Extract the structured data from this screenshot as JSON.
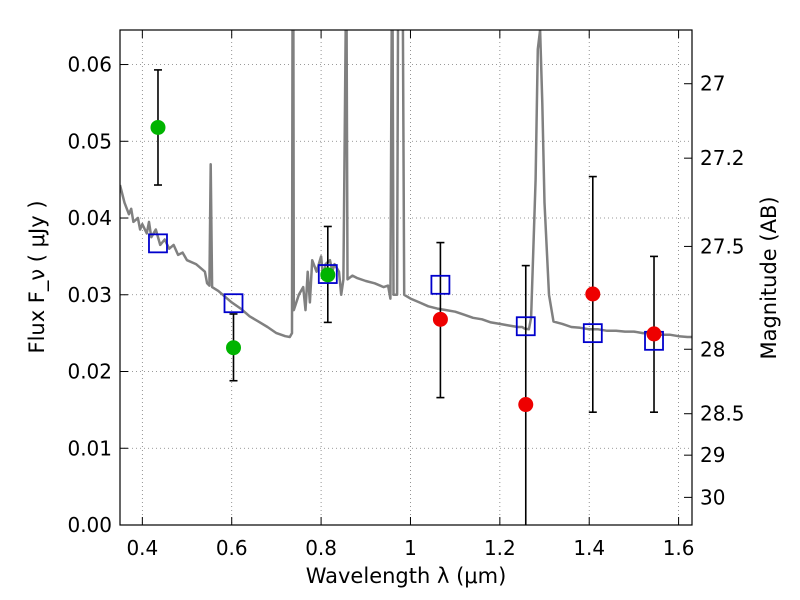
{
  "chart_data": {
    "type": "scatter",
    "title": "",
    "xlabel": "Wavelength  λ (μm)",
    "ylabel": "Flux  F_ν  ( μJy )",
    "y2label": "Magnitude (AB)",
    "xlim": [
      0.35,
      1.63
    ],
    "ylim": [
      0.0,
      0.0645
    ],
    "grid": true,
    "x_ticks": [
      0.4,
      0.6,
      0.8,
      1.0,
      1.2,
      1.4,
      1.6
    ],
    "x_tick_labels": [
      "0.4",
      "0.6",
      "0.8",
      "1",
      "1.2",
      "1.4",
      "1.6"
    ],
    "y_ticks": [
      0.0,
      0.01,
      0.02,
      0.03,
      0.04,
      0.05,
      0.06
    ],
    "y_tick_labels": [
      "0.00",
      "0.01",
      "0.02",
      "0.03",
      "0.04",
      "0.05",
      "0.06"
    ],
    "y2_ticks": [
      {
        "label": "27",
        "flux": 0.0575
      },
      {
        "label": "27.2",
        "flux": 0.0478
      },
      {
        "label": "27.5",
        "flux": 0.0363
      },
      {
        "label": "28",
        "flux": 0.0229
      },
      {
        "label": "28.5",
        "flux": 0.0145
      },
      {
        "label": "29",
        "flux": 0.0091
      },
      {
        "label": "30",
        "flux": 0.0036
      }
    ],
    "colors": {
      "model": "#808080",
      "green": "#00b400",
      "red": "#ee0000",
      "square": "#0000cc",
      "errorbar": "#000000",
      "grid": "#7a7a7a"
    },
    "model_spectrum": [
      [
        0.35,
        0.0443
      ],
      [
        0.36,
        0.042
      ],
      [
        0.37,
        0.0405
      ],
      [
        0.375,
        0.0412
      ],
      [
        0.38,
        0.0395
      ],
      [
        0.39,
        0.04
      ],
      [
        0.395,
        0.0385
      ],
      [
        0.4,
        0.0392
      ],
      [
        0.41,
        0.038
      ],
      [
        0.415,
        0.0395
      ],
      [
        0.42,
        0.0375
      ],
      [
        0.43,
        0.0385
      ],
      [
        0.44,
        0.0365
      ],
      [
        0.45,
        0.0372
      ],
      [
        0.46,
        0.036
      ],
      [
        0.47,
        0.0365
      ],
      [
        0.48,
        0.0352
      ],
      [
        0.49,
        0.0355
      ],
      [
        0.5,
        0.0345
      ],
      [
        0.52,
        0.034
      ],
      [
        0.54,
        0.033
      ],
      [
        0.545,
        0.0315
      ],
      [
        0.55,
        0.0312
      ],
      [
        0.553,
        0.047
      ],
      [
        0.556,
        0.031
      ],
      [
        0.57,
        0.0305
      ],
      [
        0.6,
        0.029
      ],
      [
        0.62,
        0.0282
      ],
      [
        0.64,
        0.0272
      ],
      [
        0.66,
        0.0265
      ],
      [
        0.68,
        0.0258
      ],
      [
        0.7,
        0.025
      ],
      [
        0.72,
        0.0246
      ],
      [
        0.73,
        0.0245
      ],
      [
        0.735,
        0.025
      ],
      [
        0.736,
        0.065
      ],
      [
        0.738,
        0.065
      ],
      [
        0.739,
        0.028
      ],
      [
        0.75,
        0.03
      ],
      [
        0.76,
        0.031
      ],
      [
        0.765,
        0.028
      ],
      [
        0.77,
        0.033
      ],
      [
        0.775,
        0.029
      ],
      [
        0.78,
        0.0345
      ],
      [
        0.79,
        0.033
      ],
      [
        0.8,
        0.035
      ],
      [
        0.805,
        0.032
      ],
      [
        0.81,
        0.034
      ],
      [
        0.82,
        0.0345
      ],
      [
        0.825,
        0.033
      ],
      [
        0.83,
        0.034
      ],
      [
        0.84,
        0.033
      ],
      [
        0.845,
        0.03
      ],
      [
        0.85,
        0.032
      ],
      [
        0.855,
        0.065
      ],
      [
        0.857,
        0.065
      ],
      [
        0.859,
        0.032
      ],
      [
        0.87,
        0.0325
      ],
      [
        0.88,
        0.0322
      ],
      [
        0.9,
        0.0318
      ],
      [
        0.92,
        0.0315
      ],
      [
        0.94,
        0.031
      ],
      [
        0.95,
        0.0312
      ],
      [
        0.955,
        0.0295
      ],
      [
        0.958,
        0.065
      ],
      [
        0.96,
        0.065
      ],
      [
        0.962,
        0.03
      ],
      [
        0.97,
        0.03
      ],
      [
        0.972,
        0.065
      ],
      [
        0.976,
        0.065
      ],
      [
        0.98,
        0.065
      ],
      [
        0.983,
        0.065
      ],
      [
        0.986,
        0.03
      ],
      [
        1.0,
        0.0295
      ],
      [
        1.02,
        0.029
      ],
      [
        1.04,
        0.0285
      ],
      [
        1.06,
        0.0282
      ],
      [
        1.08,
        0.028
      ],
      [
        1.1,
        0.0278
      ],
      [
        1.12,
        0.0274
      ],
      [
        1.14,
        0.027
      ],
      [
        1.16,
        0.0268
      ],
      [
        1.18,
        0.0264
      ],
      [
        1.2,
        0.0262
      ],
      [
        1.22,
        0.026
      ],
      [
        1.24,
        0.0258
      ],
      [
        1.25,
        0.0258
      ],
      [
        1.255,
        0.0256
      ],
      [
        1.265,
        0.0255
      ],
      [
        1.27,
        0.027
      ],
      [
        1.28,
        0.045
      ],
      [
        1.285,
        0.062
      ],
      [
        1.29,
        0.0645
      ],
      [
        1.295,
        0.055
      ],
      [
        1.3,
        0.042
      ],
      [
        1.31,
        0.03
      ],
      [
        1.32,
        0.0265
      ],
      [
        1.34,
        0.0262
      ],
      [
        1.36,
        0.0258
      ],
      [
        1.38,
        0.0257
      ],
      [
        1.4,
        0.0255
      ],
      [
        1.42,
        0.0255
      ],
      [
        1.44,
        0.0253
      ],
      [
        1.46,
        0.0253
      ],
      [
        1.48,
        0.0252
      ],
      [
        1.5,
        0.0252
      ],
      [
        1.52,
        0.025
      ],
      [
        1.54,
        0.025
      ],
      [
        1.56,
        0.0248
      ],
      [
        1.58,
        0.0248
      ],
      [
        1.6,
        0.0246
      ],
      [
        1.62,
        0.0245
      ],
      [
        1.63,
        0.0245
      ]
    ],
    "observed": [
      {
        "x": 0.435,
        "y": 0.0518,
        "err_lo": 0.0443,
        "err_hi": 0.0593,
        "color": "green"
      },
      {
        "x": 0.604,
        "y": 0.0231,
        "err_lo": 0.0188,
        "err_hi": 0.0275,
        "color": "green"
      },
      {
        "x": 0.815,
        "y": 0.0326,
        "err_lo": 0.0264,
        "err_hi": 0.0389,
        "color": "green"
      },
      {
        "x": 1.067,
        "y": 0.0268,
        "err_lo": 0.0166,
        "err_hi": 0.0368,
        "color": "red"
      },
      {
        "x": 1.258,
        "y": 0.0157,
        "err_lo": 0.0,
        "err_hi": 0.0338,
        "color": "red"
      },
      {
        "x": 1.408,
        "y": 0.0301,
        "err_lo": 0.0147,
        "err_hi": 0.0454,
        "color": "red"
      },
      {
        "x": 1.545,
        "y": 0.0249,
        "err_lo": 0.0147,
        "err_hi": 0.035,
        "color": "red"
      }
    ],
    "model_photometry": [
      {
        "x": 0.435,
        "y": 0.0367
      },
      {
        "x": 0.604,
        "y": 0.0289
      },
      {
        "x": 0.815,
        "y": 0.0327
      },
      {
        "x": 1.067,
        "y": 0.0313
      },
      {
        "x": 1.258,
        "y": 0.0259
      },
      {
        "x": 1.408,
        "y": 0.025
      },
      {
        "x": 1.545,
        "y": 0.024
      }
    ]
  }
}
